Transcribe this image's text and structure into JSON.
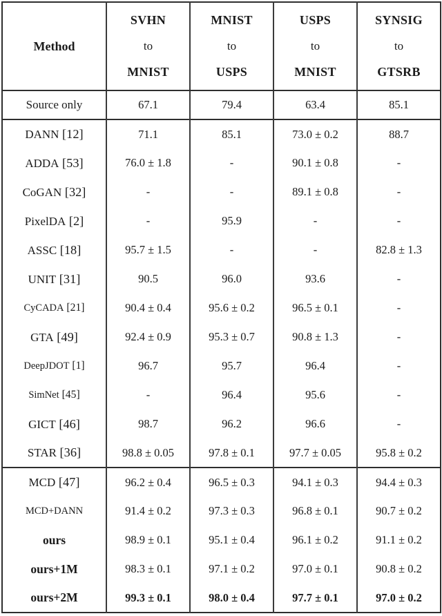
{
  "table": {
    "header": {
      "method_label": "Method",
      "columns": [
        {
          "source": "SVHN",
          "to": "to",
          "target": "MNIST"
        },
        {
          "source": "MNIST",
          "to": "to",
          "target": "USPS"
        },
        {
          "source": "USPS",
          "to": "to",
          "target": "MNIST"
        },
        {
          "source": "SYNSIG",
          "to": "to",
          "target": "GTSRB"
        }
      ]
    },
    "groups": [
      {
        "rows": [
          {
            "method": "Source only",
            "values": [
              "67.1",
              "79.4",
              "63.4",
              "85.1"
            ]
          }
        ]
      },
      {
        "rows": [
          {
            "method": "DANN",
            "cite": "[12]",
            "values": [
              "71.1",
              "85.1",
              "73.0 ± 0.2",
              "88.7"
            ]
          },
          {
            "method": "ADDA",
            "cite": "[53]",
            "values": [
              "76.0 ± 1.8",
              "-",
              "90.1 ± 0.8",
              "-"
            ]
          },
          {
            "method": "CoGAN",
            "cite": "[32]",
            "values": [
              "-",
              "-",
              "89.1 ± 0.8",
              "-"
            ]
          },
          {
            "method": "PixelDA",
            "cite": "[2]",
            "values": [
              "-",
              "95.9",
              "-",
              "-"
            ]
          },
          {
            "method": "ASSC",
            "cite": "[18]",
            "values": [
              "95.7 ± 1.5",
              "-",
              "-",
              "82.8 ± 1.3"
            ]
          },
          {
            "method": "UNIT",
            "cite": "[31]",
            "values": [
              "90.5",
              "96.0",
              "93.6",
              "-"
            ]
          },
          {
            "method": "CyCADA",
            "cite": "[21]",
            "small": true,
            "values": [
              "90.4 ± 0.4",
              "95.6 ± 0.2",
              "96.5 ± 0.1",
              "-"
            ]
          },
          {
            "method": "GTA",
            "cite": "[49]",
            "values": [
              "92.4 ± 0.9",
              "95.3 ± 0.7",
              "90.8 ± 1.3",
              "-"
            ]
          },
          {
            "method": "DeepJDOT",
            "cite": "[1]",
            "small": true,
            "values": [
              "96.7",
              "95.7",
              "96.4",
              "-"
            ]
          },
          {
            "method": "SimNet",
            "cite": "[45]",
            "small": true,
            "values": [
              "-",
              "96.4",
              "95.6",
              "-"
            ]
          },
          {
            "method": "GICT",
            "cite": "[46]",
            "values": [
              "98.7",
              "96.2",
              "96.6",
              "-"
            ]
          },
          {
            "method": "STAR",
            "cite": "[36]",
            "values": [
              "98.8 ± 0.05",
              "97.8 ± 0.1",
              "97.7 ± 0.05",
              "95.8 ± 0.2"
            ]
          }
        ]
      },
      {
        "rows": [
          {
            "method": "MCD",
            "cite": "[47]",
            "values": [
              "96.2 ± 0.4",
              "96.5 ± 0.3",
              "94.1 ± 0.3",
              "94.4 ± 0.3"
            ]
          },
          {
            "method": "MCD+DANN",
            "small": true,
            "values": [
              "91.4 ± 0.2",
              "97.3 ± 0.3",
              "96.8 ± 0.1",
              "90.7 ± 0.2"
            ]
          },
          {
            "method": "ours",
            "bold_method": true,
            "values": [
              "98.9 ± 0.1",
              "95.1 ± 0.4",
              "96.1 ± 0.2",
              "91.1 ± 0.2"
            ]
          },
          {
            "method": "ours+1M",
            "bold_method": true,
            "values": [
              "98.3 ± 0.1",
              "97.1 ± 0.2",
              "97.0 ± 0.1",
              "90.8 ± 0.2"
            ]
          },
          {
            "method": "ours+2M",
            "bold_method": true,
            "bold_values": true,
            "values": [
              "99.3 ± 0.1",
              "98.0 ± 0.4",
              "97.7 ± 0.1",
              "97.0 ± 0.2"
            ]
          }
        ]
      }
    ]
  }
}
